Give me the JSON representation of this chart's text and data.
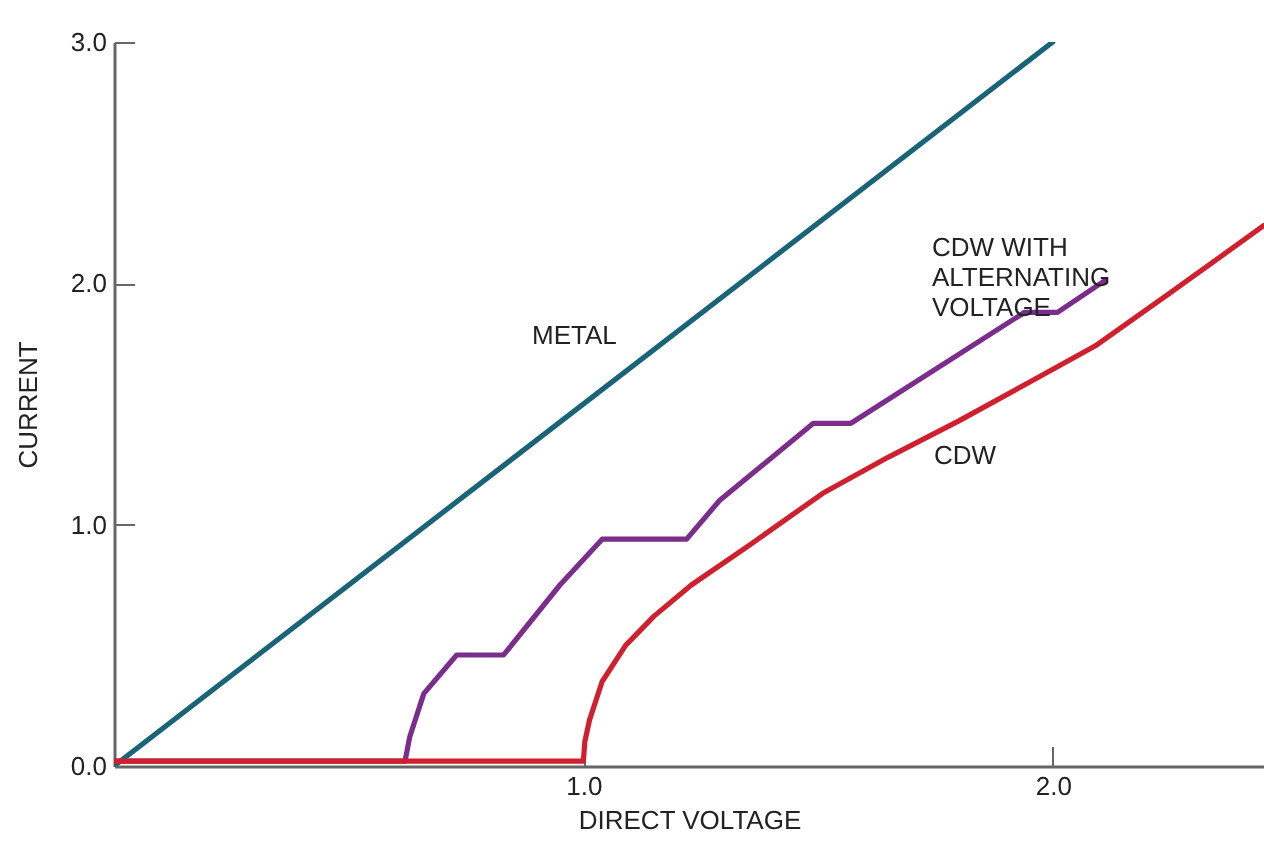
{
  "chart_data": {
    "type": "line",
    "xlabel": "DIRECT VOLTAGE",
    "ylabel": "CURRENT",
    "xlim": [
      0,
      2.45
    ],
    "ylim": [
      0,
      3.0
    ],
    "xticks": [
      {
        "value": 1,
        "label": "1.0"
      },
      {
        "value": 2,
        "label": "2.0"
      }
    ],
    "yticks": [
      {
        "value": 0,
        "label": "0.0"
      },
      {
        "value": 1,
        "label": "1.0"
      },
      {
        "value": 2,
        "label": "2.0"
      },
      {
        "value": 3,
        "label": "3.0"
      }
    ],
    "grid": false,
    "legend": false,
    "marker": "none",
    "line_style": "solid",
    "series": [
      {
        "color": "#1a6478",
        "x": [
          0,
          2.0
        ],
        "values": [
          0,
          3.0
        ]
      },
      {
        "color": "#7b2d8b",
        "x": [
          0,
          0.62,
          0.63,
          0.66,
          0.73,
          0.83,
          0.95,
          1.04,
          1.22,
          1.29,
          1.49,
          1.57,
          1.94,
          2.01,
          2.11
        ],
        "values": [
          0.02,
          0.02,
          0.12,
          0.3,
          0.46,
          0.46,
          0.75,
          0.94,
          0.94,
          1.1,
          1.42,
          1.42,
          1.88,
          1.88,
          2.01
        ]
      },
      {
        "color": "#d0202e",
        "x": [
          0,
          1.0,
          1.003,
          1.013,
          1.04,
          1.09,
          1.15,
          1.23,
          1.35,
          1.51,
          1.65,
          1.8,
          1.95,
          2.09,
          2.25,
          2.45
        ],
        "values": [
          0.02,
          0.02,
          0.1,
          0.19,
          0.35,
          0.5,
          0.62,
          0.75,
          0.91,
          1.13,
          1.28,
          1.43,
          1.59,
          1.74,
          1.96,
          2.24
        ]
      }
    ],
    "annotations": [
      "METAL",
      "CDW",
      "CDW WITH\nALTERNATING\nVOLTAGE"
    ]
  }
}
